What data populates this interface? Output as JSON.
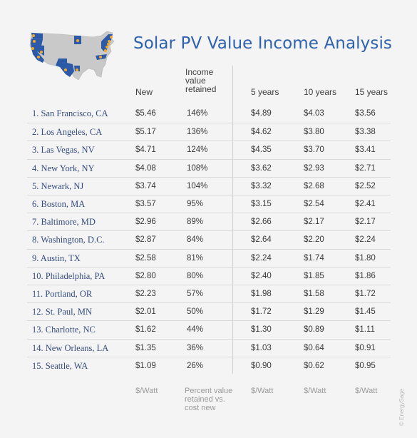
{
  "title": "Solar PV Value Income Analysis",
  "headers": {
    "new": "New",
    "retained_l1": "Income",
    "retained_l2": "value",
    "retained_l3": "retained",
    "y5": "5 years",
    "y10": "10 years",
    "y15": "15 years"
  },
  "rows": [
    {
      "city": "1. San Francisco, CA",
      "new": "$5.46",
      "pct": "146%",
      "y5": "$4.89",
      "y10": "$4.03",
      "y15": "$3.56"
    },
    {
      "city": "2. Los Angeles, CA",
      "new": "$5.17",
      "pct": "136%",
      "y5": "$4.62",
      "y10": "$3.80",
      "y15": "$3.38"
    },
    {
      "city": "3. Las Vegas, NV",
      "new": "$4.71",
      "pct": "124%",
      "y5": "$4.35",
      "y10": "$3.70",
      "y15": "$3.41"
    },
    {
      "city": "4. New York, NY",
      "new": "$4.08",
      "pct": "108%",
      "y5": "$3.62",
      "y10": "$2.93",
      "y15": "$2.71"
    },
    {
      "city": "5. Newark, NJ",
      "new": "$3.74",
      "pct": "104%",
      "y5": "$3.32",
      "y10": "$2.68",
      "y15": "$2.52"
    },
    {
      "city": "6. Boston, MA",
      "new": "$3.57",
      "pct": "95%",
      "y5": "$3.15",
      "y10": "$2.54",
      "y15": "$2.41"
    },
    {
      "city": "7. Baltimore, MD",
      "new": "$2.96",
      "pct": "89%",
      "y5": "$2.66",
      "y10": "$2.17",
      "y15": "$2.17"
    },
    {
      "city": "8. Washington, D.C.",
      "new": "$2.87",
      "pct": "84%",
      "y5": "$2.64",
      "y10": "$2.20",
      "y15": "$2.24"
    },
    {
      "city": "9. Austin, TX",
      "new": "$2.58",
      "pct": "81%",
      "y5": "$2.24",
      "y10": "$1.74",
      "y15": "$1.80"
    },
    {
      "city": "10. Philadelphia, PA",
      "new": "$2.80",
      "pct": "80%",
      "y5": "$2.40",
      "y10": "$1.85",
      "y15": "$1.86"
    },
    {
      "city": "11. Portland, OR",
      "new": "$2.23",
      "pct": "57%",
      "y5": "$1.98",
      "y10": "$1.58",
      "y15": "$1.72"
    },
    {
      "city": "12. St. Paul, MN",
      "new": "$2.01",
      "pct": "50%",
      "y5": "$1.72",
      "y10": "$1.29",
      "y15": "$1.45"
    },
    {
      "city": "13. Charlotte, NC",
      "new": "$1.62",
      "pct": "44%",
      "y5": "$1.30",
      "y10": "$0.89",
      "y15": "$1.11"
    },
    {
      "city": "14. New Orleans, LA",
      "new": "$1.35",
      "pct": "36%",
      "y5": "$1.03",
      "y10": "$0.64",
      "y15": "$0.91"
    },
    {
      "city": "15. Seattle, WA",
      "new": "$1.09",
      "pct": "26%",
      "y5": "$0.90",
      "y10": "$0.62",
      "y15": "$0.95"
    }
  ],
  "footer": {
    "new_unit": "$/Watt",
    "pct_unit_l1": "Percent value",
    "pct_unit_l2": "retained vs.",
    "pct_unit_l3": "cost new",
    "y5_unit": "$/Watt",
    "y10_unit": "$/Watt",
    "y15_unit": "$/Watt"
  },
  "credit": "© EnergySage",
  "colors": {
    "title": "#2f62ae",
    "highlight_state": "#2d5aa6",
    "map_base": "#c9c9c9",
    "city_dot": "#f0a830"
  },
  "icons": {
    "map": "us-map-icon"
  }
}
